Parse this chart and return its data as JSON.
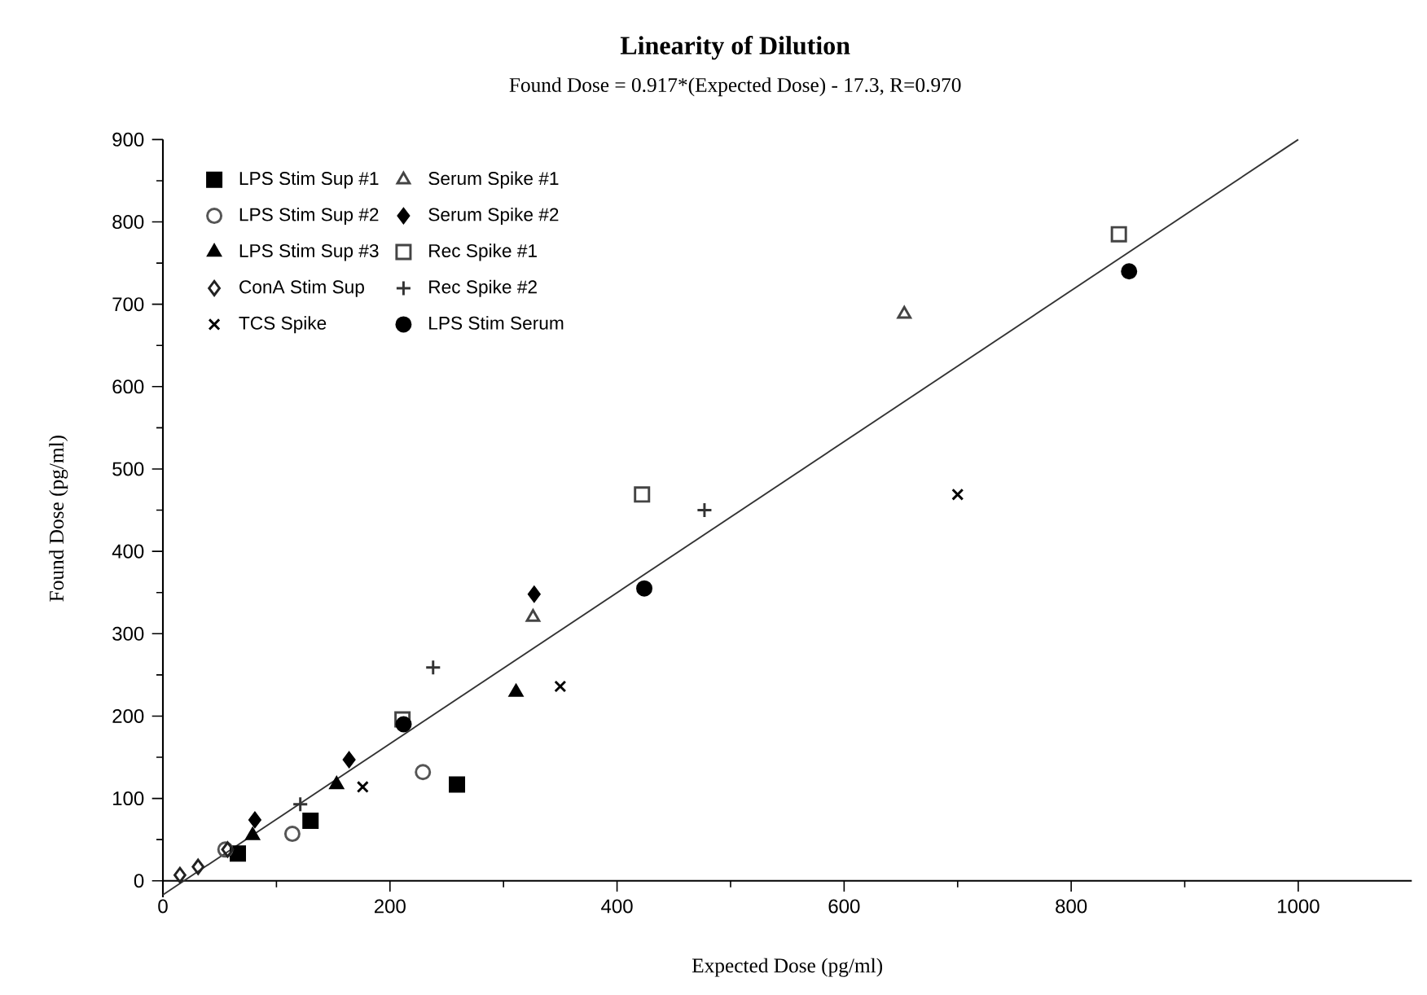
{
  "chart_data": {
    "type": "scatter",
    "title": "Linearity of Dilution",
    "subtitle": "Found Dose = 0.917*(Expected Dose) - 17.3, R=0.970",
    "xlabel": "Expected Dose (pg/ml)",
    "ylabel": "Found Dose (pg/ml)",
    "xlim": [
      0,
      1100
    ],
    "ylim": [
      -20,
      900
    ],
    "xticks": [
      0,
      200,
      400,
      600,
      800,
      1000
    ],
    "yticks": [
      0,
      100,
      200,
      300,
      400,
      500,
      600,
      700,
      800,
      900
    ],
    "grid": false,
    "legend": "top left",
    "series": [
      {
        "name": "LPS Stim Sup #1",
        "color": "#000000",
        "marker": "square",
        "x": [
          66,
          130,
          259
        ],
        "values": [
          33,
          73,
          117
        ]
      },
      {
        "name": "Serum Spike #1",
        "color": "#444444",
        "marker": "triangle",
        "x": [
          326,
          653
        ],
        "values": [
          320,
          688
        ]
      },
      {
        "name": "LPS Stim Sup #2",
        "color": "#555555",
        "marker": "circle",
        "x": [
          55,
          114,
          229
        ],
        "values": [
          38,
          57,
          132
        ]
      },
      {
        "name": "Serum Spike #2",
        "color": "#000000",
        "marker": "diamond",
        "x": [
          81,
          164,
          327
        ],
        "values": [
          74,
          147,
          348
        ]
      },
      {
        "name": "LPS Stim Sup #3",
        "color": "#000000",
        "marker": "triangle",
        "x": [
          79,
          153,
          311
        ],
        "values": [
          55,
          117,
          229
        ]
      },
      {
        "name": "Rec Spike #1",
        "color": "#444444",
        "marker": "square",
        "x": [
          211,
          422,
          842
        ],
        "values": [
          196,
          469,
          785
        ]
      },
      {
        "name": "ConA Stim Sup",
        "color": "#222222",
        "marker": "diamond",
        "x": [
          15,
          31,
          57
        ],
        "values": [
          7,
          17,
          38
        ]
      },
      {
        "name": "Rec Spike #2",
        "color": "#333333",
        "marker": "cross",
        "x": [
          121,
          238,
          477
        ],
        "values": [
          93,
          259,
          450
        ]
      },
      {
        "name": "TCS Spike",
        "color": "#000000",
        "marker": "cross",
        "x": [
          176,
          350,
          700
        ],
        "values": [
          114,
          236,
          469
        ]
      },
      {
        "name": "LPS Stim Serum",
        "color": "#000000",
        "marker": "circle",
        "x": [
          212,
          424,
          851
        ],
        "values": [
          190,
          355,
          740
        ]
      },
      {
        "type": "line",
        "color": "#333333",
        "x": [
          0,
          1000
        ],
        "values": [
          -17,
          900
        ]
      }
    ]
  }
}
